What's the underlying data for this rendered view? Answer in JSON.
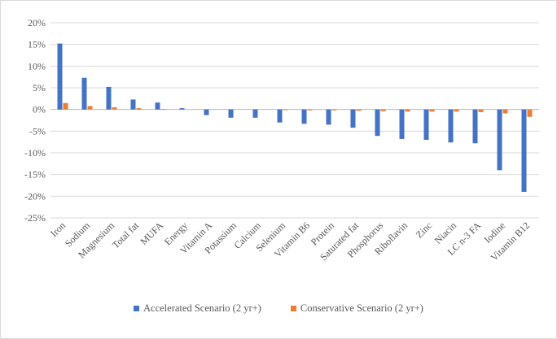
{
  "chart_data": {
    "type": "bar",
    "title": "",
    "xlabel": "",
    "ylabel": "",
    "ylim": [
      -25,
      20
    ],
    "yticks": [
      "20%",
      "15%",
      "10%",
      "5%",
      "0%",
      "-5%",
      "-10%",
      "-15%",
      "-20%",
      "-25%"
    ],
    "grid": true,
    "legend_position": "bottom",
    "categories": [
      "Iron",
      "Sodium",
      "Magnesium",
      "Total fat",
      "MUFA",
      "Energy",
      "Vitamin A",
      "Potassium",
      "Calcium",
      "Selenium",
      "Vitamin B6",
      "Protein",
      "Saturated fat",
      "Phosphorus",
      "Riboflavin",
      "Zinc",
      "Niacin",
      "LC n-3 FA",
      "Iodine",
      "Vitamin B12"
    ],
    "series": [
      {
        "name": "Accelerated Scenario (2 yr+)",
        "color": "#4472C4",
        "values": [
          15.2,
          7.3,
          5.2,
          2.3,
          1.6,
          0.3,
          -1.3,
          -1.9,
          -1.9,
          -3.0,
          -3.3,
          -3.5,
          -4.2,
          -6.1,
          -6.8,
          -7.0,
          -7.6,
          -7.8,
          -14.0,
          -19.0
        ]
      },
      {
        "name": "Conservative Scenario (2 yr+)",
        "color": "#ED7D31",
        "values": [
          1.5,
          0.8,
          0.5,
          0.3,
          0.1,
          0.0,
          0.0,
          0.0,
          0.0,
          -0.1,
          -0.2,
          -0.2,
          -0.3,
          -0.4,
          -0.5,
          -0.5,
          -0.5,
          -0.6,
          -0.9,
          -1.7
        ]
      }
    ]
  }
}
